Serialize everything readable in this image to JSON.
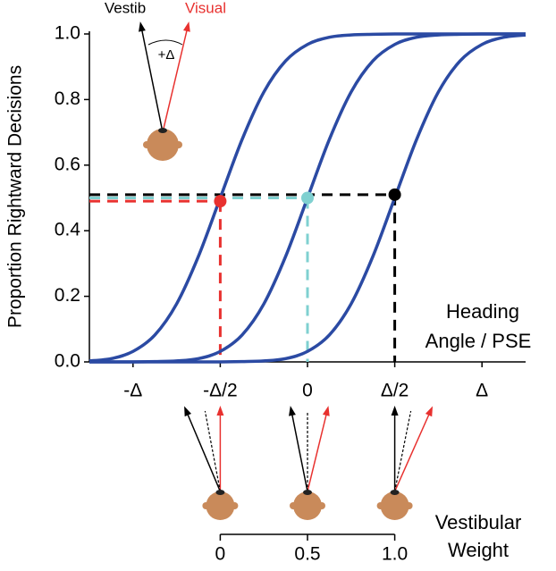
{
  "chart_data": {
    "type": "line",
    "ylabel": "Proportion Rightward Decisions",
    "xlabel": [
      "Heading",
      "Angle / PSE"
    ],
    "x2label": [
      "Vestibular",
      "Weight"
    ],
    "inset": {
      "vestib": "Vestib",
      "visual": "Visual",
      "delta": "+Δ"
    },
    "xlim": [
      -1.25,
      1.25
    ],
    "xticks": [
      {
        "value": -1,
        "label": "-Δ"
      },
      {
        "value": -0.5,
        "label": "-Δ/2"
      },
      0,
      {
        "value": 0.5,
        "label": "Δ/2"
      },
      {
        "value": 1,
        "label": "Δ"
      }
    ],
    "ylim": [
      0,
      1
    ],
    "yticks": [
      {
        "value": 0,
        "label": "0.0"
      },
      0.2,
      0.4,
      0.6,
      0.8,
      {
        "value": 1,
        "label": "1.0"
      }
    ],
    "x2lim": [
      0,
      1
    ],
    "x2ticks": [
      0,
      0.5,
      {
        "value": 1,
        "label": "1.0"
      }
    ],
    "x": [
      -1.25,
      -1.125,
      -1,
      -0.875,
      -0.75,
      -0.625,
      -0.5,
      -0.375,
      -0.25,
      -0.125,
      0,
      0.125,
      0.25,
      0.375,
      0.5,
      0.625,
      0.75,
      0.875,
      1,
      1.125,
      1.25
    ],
    "series": [
      {
        "color": "#2b4aa3",
        "values": [
          0.003,
          0.01,
          0.032,
          0.082,
          0.177,
          0.322,
          0.5,
          0.678,
          0.823,
          0.918,
          0.968,
          0.99,
          0.997,
          0.999,
          1,
          1,
          1,
          1,
          1,
          1,
          1
        ]
      },
      {
        "color": "#2b4aa3",
        "values": [
          0,
          0,
          0,
          0.001,
          0.003,
          0.01,
          0.032,
          0.082,
          0.177,
          0.322,
          0.5,
          0.678,
          0.823,
          0.918,
          0.968,
          0.99,
          0.997,
          0.999,
          1,
          1,
          1
        ]
      },
      {
        "color": "#2b4aa3",
        "values": [
          0,
          0,
          0,
          0,
          0,
          0,
          0,
          0.001,
          0.003,
          0.01,
          0.032,
          0.082,
          0.177,
          0.322,
          0.5,
          0.678,
          0.823,
          0.918,
          0.968,
          0.99,
          0.997
        ]
      }
    ],
    "markers": [
      {
        "x": -0.5,
        "y": 0.49,
        "color": "#e8312f"
      },
      {
        "x": 0,
        "y": 0.5,
        "color": "#7fd0d0"
      },
      {
        "x": 0.5,
        "y": 0.51,
        "color": "#000000"
      }
    ]
  }
}
